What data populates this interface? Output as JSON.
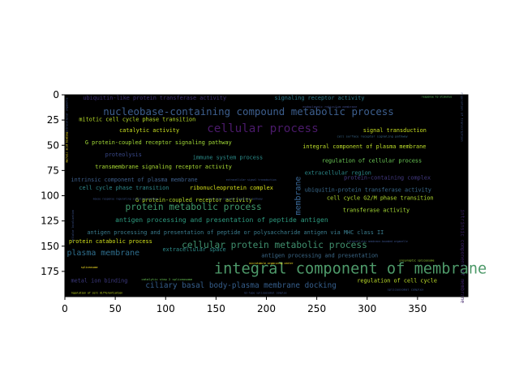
{
  "chart_data": {
    "type": "wordcloud",
    "title": "",
    "xlabel": "",
    "ylabel": "",
    "xlim": [
      0,
      400
    ],
    "ylim": [
      200,
      0
    ],
    "xticks": [
      0,
      50,
      100,
      150,
      200,
      250,
      300,
      350
    ],
    "yticks": [
      0,
      25,
      50,
      75,
      100,
      125,
      150,
      175
    ],
    "background": "#000000",
    "words": [
      {
        "text": "integral component of membrane",
        "x": 148,
        "y": 177,
        "size": 15,
        "color": "#4e9a6a"
      },
      {
        "text": "nucleobase-containing compound metabolic process",
        "x": 38,
        "y": 20,
        "size": 10,
        "color": "#3d5f8f"
      },
      {
        "text": "cellular process",
        "x": 141,
        "y": 37,
        "size": 11.5,
        "color": "#4b1a6b"
      },
      {
        "text": "protein metabolic process",
        "x": 60,
        "y": 114,
        "size": 9,
        "color": "#3f9a6c"
      },
      {
        "text": "cellular protein metabolic process",
        "x": 116,
        "y": 152,
        "size": 9,
        "color": "#40906e"
      },
      {
        "text": "plasma membrane",
        "x": 2,
        "y": 159,
        "size": 8,
        "color": "#2f6f8e"
      },
      {
        "text": "ciliary basal body-plasma membrane docking",
        "x": 80,
        "y": 191,
        "size": 7.5,
        "color": "#365f8d"
      },
      {
        "text": "antigen processing and presentation of peptide antigen",
        "x": 50,
        "y": 126,
        "size": 6.5,
        "color": "#2d9a7f"
      },
      {
        "text": "antigen processing and presentation of peptide or polysaccharide antigen via MHC class II",
        "x": 22,
        "y": 138,
        "size": 5.5,
        "color": "#3a7c8e"
      },
      {
        "text": "ubiquitin-like protein transferase activity",
        "x": 18,
        "y": 5,
        "size": 5.5,
        "color": "#3b2f72"
      },
      {
        "text": "signaling receptor activity",
        "x": 208,
        "y": 5,
        "size": 5.5,
        "color": "#2a7a8c"
      },
      {
        "text": "mitotic cell cycle phase transition",
        "x": 14,
        "y": 26,
        "size": 5.5,
        "color": "#b8de29"
      },
      {
        "text": "catalytic activity",
        "x": 54,
        "y": 37,
        "size": 5.5,
        "color": "#c8e020"
      },
      {
        "text": "G protein-coupled receptor signaling pathway",
        "x": 20,
        "y": 49,
        "size": 5.5,
        "color": "#a2da37"
      },
      {
        "text": "proteolysis",
        "x": 40,
        "y": 61,
        "size": 5.5,
        "color": "#3a4a8c"
      },
      {
        "text": "immune system process",
        "x": 127,
        "y": 64,
        "size": 5.5,
        "color": "#2c8e8c"
      },
      {
        "text": "transmembrane signaling receptor activity",
        "x": 30,
        "y": 73,
        "size": 5.5,
        "color": "#a9db33"
      },
      {
        "text": "intrinsic component of plasma membrane",
        "x": 6,
        "y": 86,
        "size": 5.5,
        "color": "#3d5f8c"
      },
      {
        "text": "cell cycle phase transition",
        "x": 14,
        "y": 94,
        "size": 5.5,
        "color": "#2f8a8c"
      },
      {
        "text": "ribonucleoprotein complex",
        "x": 124,
        "y": 94,
        "size": 5.5,
        "color": "#d8e219"
      },
      {
        "text": "G protein-coupled receptor activity",
        "x": 70,
        "y": 106,
        "size": 5.5,
        "color": "#b5dd2b"
      },
      {
        "text": "signal transduction",
        "x": 296,
        "y": 37,
        "size": 5.5,
        "color": "#c8e020"
      },
      {
        "text": "integral component of plasma membrane",
        "x": 236,
        "y": 53,
        "size": 5.5,
        "color": "#bfe02a"
      },
      {
        "text": "regulation of cellular process",
        "x": 255,
        "y": 67,
        "size": 5.5,
        "color": "#6ece58"
      },
      {
        "text": "extracellular region",
        "x": 238,
        "y": 79,
        "size": 5.5,
        "color": "#2d8c8d"
      },
      {
        "text": "protein-containing complex",
        "x": 277,
        "y": 84,
        "size": 5.5,
        "color": "#443a83"
      },
      {
        "text": "ubiquitin-protein transferase activity",
        "x": 238,
        "y": 96,
        "size": 5.5,
        "color": "#3a6b8e"
      },
      {
        "text": "cell cycle G2/M phase transition",
        "x": 260,
        "y": 104,
        "size": 5.5,
        "color": "#b2dd2d"
      },
      {
        "text": "transferase activity",
        "x": 276,
        "y": 116,
        "size": 5.5,
        "color": "#a6db35"
      },
      {
        "text": "protein catabolic process",
        "x": 4,
        "y": 147,
        "size": 5.5,
        "color": "#d2e21b"
      },
      {
        "text": "extracellular space",
        "x": 97,
        "y": 155,
        "size": 5.5,
        "color": "#2e8d8c"
      },
      {
        "text": "antigen processing and presentation",
        "x": 195,
        "y": 161,
        "size": 5.5,
        "color": "#3d6b8c"
      },
      {
        "text": "metal ion binding",
        "x": 6,
        "y": 186,
        "size": 5.5,
        "color": "#3d3a80"
      },
      {
        "text": "regulation of cell cycle",
        "x": 290,
        "y": 186,
        "size": 5.5,
        "color": "#bfe02a"
      },
      {
        "text": "cell surface receptor signaling pathway",
        "x": 270,
        "y": 42,
        "size": 3,
        "color": "#3b6a8e"
      },
      {
        "text": "endoplasmic reticulum membrane",
        "x": 236,
        "y": 13,
        "size": 3,
        "color": "#3e4a89"
      },
      {
        "text": "response to stimulus",
        "x": 354,
        "y": 3,
        "size": 2.5,
        "color": "#5ec962"
      },
      {
        "text": "extracellular signal transduction",
        "x": 160,
        "y": 85,
        "size": 2.5,
        "color": "#3b528b"
      },
      {
        "text": "intracellular membrane-bounded organelle",
        "x": 280,
        "y": 146,
        "size": 2.5,
        "color": "#3b528b"
      },
      {
        "text": "presynaptic spliceosome",
        "x": 332,
        "y": 165,
        "size": 2.5,
        "color": "#a0da39"
      },
      {
        "text": "microtubule organizing center",
        "x": 183,
        "y": 168,
        "size": 2.5,
        "color": "#fde725"
      },
      {
        "text": "spliceosome",
        "x": 16,
        "y": 172,
        "size": 2.5,
        "color": "#fde725"
      },
      {
        "text": "catalytic step 2 spliceosome",
        "x": 76,
        "y": 184,
        "size": 3,
        "color": "#6ece58"
      },
      {
        "text": "G2-type spliceosomal complex",
        "x": 178,
        "y": 197,
        "size": 2.5,
        "color": "#3b528b"
      },
      {
        "text": "spliceosomal complex",
        "x": 320,
        "y": 194,
        "size": 3,
        "color": "#3b528b"
      },
      {
        "text": "regulation of cell differentiation",
        "x": 6,
        "y": 197,
        "size": 2.5,
        "color": "#c8e020"
      },
      {
        "text": "mouse response regulating signaling pathway",
        "x": 28,
        "y": 104,
        "size": 2.5,
        "color": "#3b528b"
      },
      {
        "text": "toll-like receptor signaling pathway",
        "x": 142,
        "y": 104,
        "size": 2.5,
        "color": "#3b528b"
      },
      {
        "text": "membrane",
        "x": 234,
        "y": 100,
        "size": 8,
        "color": "#3b6a9a",
        "rotate": -90
      },
      {
        "text": "nucleic acid binding",
        "x": 3,
        "y": 52,
        "size": 2.5,
        "color": "#fde725",
        "rotate": -90
      },
      {
        "text": "intrinsic component of membrane",
        "x": 393,
        "y": 160,
        "size": 5,
        "color": "#3b1f68",
        "rotate": 90
      },
      {
        "text": "regulation of transcription",
        "x": 393,
        "y": 22,
        "size": 3,
        "color": "#3b528b",
        "rotate": 90
      },
      {
        "text": "cellular localization",
        "x": 9,
        "y": 130,
        "size": 2.5,
        "color": "#3b528b",
        "rotate": -90
      },
      {
        "text": "intracellular organelle",
        "x": 3,
        "y": 20,
        "size": 2.5,
        "color": "#3b528b",
        "rotate": -90
      }
    ]
  }
}
